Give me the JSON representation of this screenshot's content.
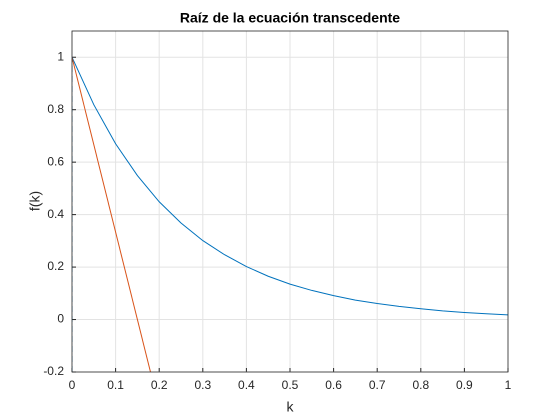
{
  "chart_data": {
    "type": "line",
    "title": "Raíz de la ecuación transcedente",
    "x_label": "k",
    "y_label": "f(k)",
    "xlim": [
      0,
      1
    ],
    "ylim": [
      -0.2,
      1.1
    ],
    "xticks": [
      0,
      0.1,
      0.2,
      0.3,
      0.4,
      0.5,
      0.6,
      0.7,
      0.8,
      0.9,
      1
    ],
    "yticks": [
      -0.2,
      0,
      0.2,
      0.4,
      0.6,
      0.8,
      1
    ],
    "grid": true,
    "series": [
      {
        "color": "#0072bd",
        "line_style": "solid",
        "x": [
          0,
          0.05,
          0.1,
          0.15,
          0.2,
          0.25,
          0.3,
          0.35,
          0.4,
          0.45,
          0.5,
          0.55,
          0.6,
          0.65,
          0.7,
          0.75,
          0.8,
          0.85,
          0.9,
          0.95,
          1
        ],
        "values": [
          1,
          0.819,
          0.67,
          0.549,
          0.449,
          0.368,
          0.301,
          0.247,
          0.202,
          0.165,
          0.135,
          0.111,
          0.091,
          0.074,
          0.061,
          0.05,
          0.041,
          0.033,
          0.027,
          0.022,
          0.018
        ]
      },
      {
        "color": "#d95319",
        "line_style": "solid",
        "x": [
          0,
          0.18
        ],
        "values": [
          1,
          -0.2
        ]
      },
      {
        "color": "#0072bd",
        "line_style": "dashed",
        "x": [
          0,
          0
        ],
        "values": [
          -0.2,
          1
        ]
      }
    ]
  }
}
